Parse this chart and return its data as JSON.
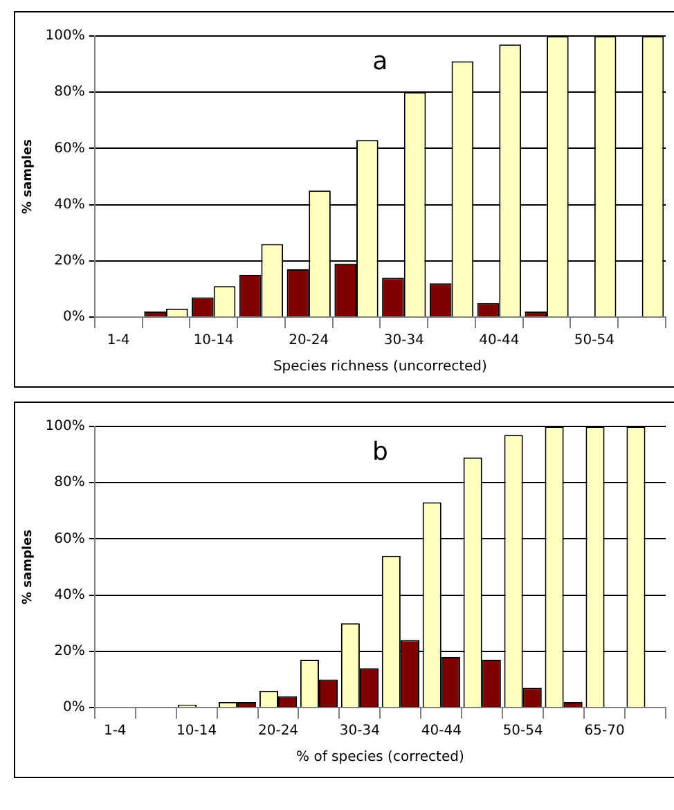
{
  "chart_data": [
    {
      "type": "bar",
      "xlabel": "Species richness (uncorrected)",
      "ylabel": "% samples",
      "annotations": [
        "a"
      ],
      "grid": "y",
      "categories": [
        "1-4",
        null,
        "10-14",
        null,
        "20-24",
        null,
        "30-34",
        null,
        "40-44",
        null,
        "50-54",
        null
      ],
      "series": [
        {
          "color": "#800000",
          "values": [
            null,
            2,
            7,
            15,
            17,
            19,
            14,
            12,
            5,
            2,
            null,
            null
          ]
        },
        {
          "color": "#ffffc0",
          "values": [
            null,
            3,
            11,
            26,
            45,
            63,
            80,
            91,
            97,
            100,
            100,
            100
          ]
        }
      ],
      "ylim": [
        0,
        100
      ],
      "yticks": [
        {
          "value": 0,
          "label": "0%"
        },
        {
          "value": 20,
          "label": "20%"
        },
        {
          "value": 40,
          "label": "40%"
        },
        {
          "value": 60,
          "label": "60%"
        },
        {
          "value": 80,
          "label": "80%"
        },
        {
          "value": 100,
          "label": "100%"
        }
      ]
    },
    {
      "type": "bar",
      "xlabel": "% of species (corrected)",
      "ylabel": "% samples",
      "annotations": [
        "b"
      ],
      "grid": "y",
      "categories": [
        "1-4",
        null,
        "10-14",
        null,
        "20-24",
        null,
        "30-34",
        null,
        "40-44",
        null,
        "50-54",
        null,
        "65-70",
        null
      ],
      "series": [
        {
          "color": "#ffffc0",
          "values": [
            null,
            null,
            1,
            2,
            6,
            17,
            30,
            54,
            73,
            89,
            97,
            100,
            100,
            100
          ]
        },
        {
          "color": "#800000",
          "values": [
            null,
            null,
            null,
            2,
            4,
            10,
            14,
            24,
            18,
            17,
            7,
            2,
            null,
            null
          ]
        }
      ],
      "ylim": [
        0,
        100
      ],
      "yticks": [
        {
          "value": 0,
          "label": "0%"
        },
        {
          "value": 20,
          "label": "20%"
        },
        {
          "value": 40,
          "label": "40%"
        },
        {
          "value": 60,
          "label": "60%"
        },
        {
          "value": 80,
          "label": "80%"
        },
        {
          "value": 100,
          "label": "100%"
        }
      ]
    }
  ]
}
